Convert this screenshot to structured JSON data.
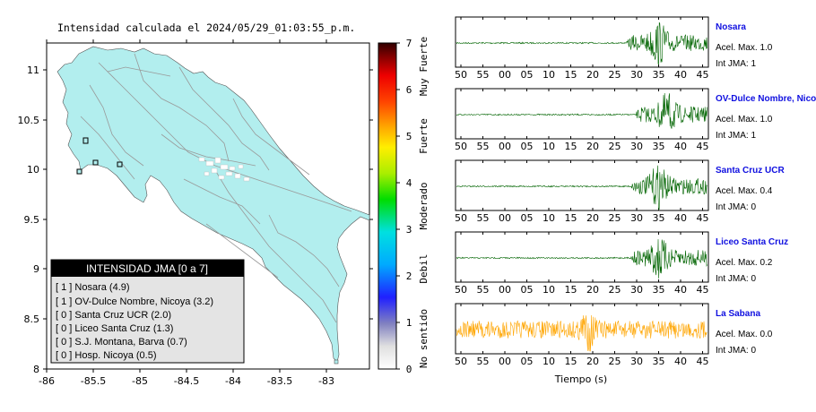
{
  "map": {
    "title": "Intensidad calculada el 2024/05/29_01:03:55_p.m.",
    "x_ticks": [
      "-86",
      "-85.5",
      "-85",
      "-84.5",
      "-84",
      "-83.5",
      "-83"
    ],
    "y_ticks": [
      "11",
      "10.5",
      "10",
      "9.5",
      "9",
      "8.5",
      "8"
    ],
    "land_color": "#b2eeee",
    "legend": {
      "title": "INTENSIDAD JMA [0 a 7]",
      "rows": [
        "[ 1 ]  Nosara (4.9)",
        "[ 1 ]  OV-Dulce Nombre, Nicoya (3.2)",
        "[ 0 ]  Santa Cruz UCR (2.0)",
        "[ 0 ]  Liceo Santa Cruz (1.3)",
        "[ 0 ]  S.J. Montana, Barva (0.7)",
        "[ 0 ]  Hosp. Nicoya (0.5)"
      ]
    }
  },
  "colorbar": {
    "ticks": [
      "7",
      "6",
      "5",
      "4",
      "3",
      "2",
      "1",
      "0"
    ],
    "labels": [
      "Muy Fuerte",
      "Fuerte",
      "Moderado",
      "Debil",
      "No sentido"
    ]
  },
  "chart_data": {
    "type": "line",
    "xlabel": "Tiempo (s)",
    "x_ticks": [
      "50",
      "55",
      "00",
      "05",
      "10",
      "15",
      "20",
      "25",
      "30",
      "35",
      "40",
      "45"
    ],
    "stations": [
      {
        "name": "Nosara",
        "acel_max": "Acel. Max. 1.0",
        "int_jma": "Int JMA: 1",
        "color": "#006400",
        "onset_tick": 27.5,
        "peak_tick": 35
      },
      {
        "name": "OV-Dulce Nombre, Nicoya",
        "acel_max": "Acel. Max. 1.0",
        "int_jma": "Int JMA: 1",
        "color": "#006400",
        "onset_tick": 29.5,
        "peak_tick": 37
      },
      {
        "name": "Santa Cruz UCR",
        "acel_max": "Acel. Max. 0.4",
        "int_jma": "Int JMA: 0",
        "color": "#006400",
        "onset_tick": 28.5,
        "peak_tick": 35
      },
      {
        "name": "Liceo Santa Cruz",
        "acel_max": "Acel. Max. 0.2",
        "int_jma": "Int JMA: 0",
        "color": "#006400",
        "onset_tick": 28.5,
        "peak_tick": 35
      },
      {
        "name": "La Sabana",
        "acel_max": "Acel. Max. 0.0",
        "int_jma": "Int JMA: 0",
        "color": "#ffa500",
        "onset_tick": -1,
        "peak_tick": 19
      }
    ]
  }
}
